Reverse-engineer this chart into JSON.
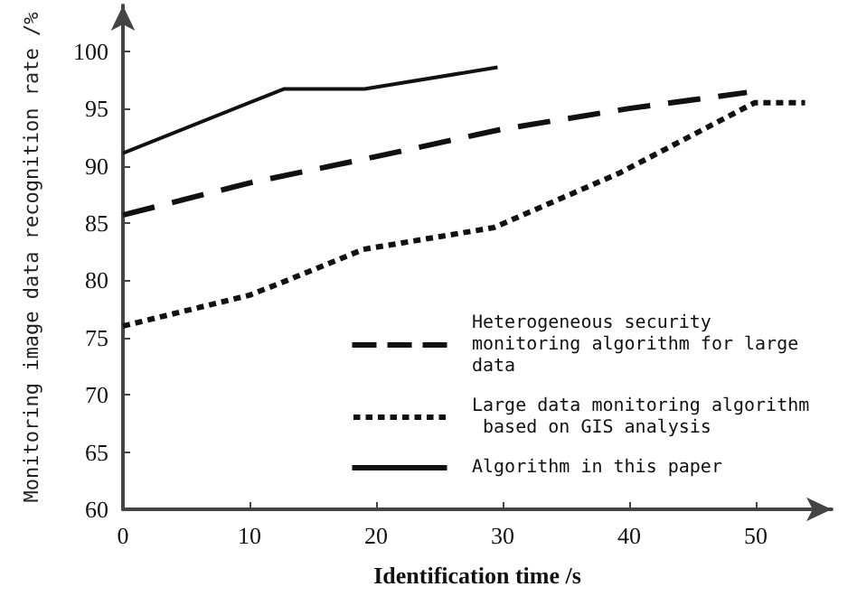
{
  "chart_data": {
    "type": "line",
    "xlabel": "Identification time /s",
    "ylabel": "Monitoring image data recognition rate /%",
    "xlim": [
      0,
      56
    ],
    "xticks": [
      0,
      10,
      20,
      30,
      40,
      50
    ],
    "ylim": [
      60,
      104
    ],
    "yticks": [
      60,
      65,
      70,
      75,
      80,
      85,
      90,
      95,
      100
    ],
    "grid": false,
    "legend": "bottom right",
    "marker": "none",
    "series": [
      {
        "name": "Heterogeneous security monitoring algorithm for large data",
        "color": "#111111",
        "line_style": "dashed",
        "x": [
          0,
          10,
          20,
          30,
          40,
          49.3
        ],
        "values": [
          85.7,
          88.5,
          90.8,
          93.2,
          95,
          96.4
        ]
      },
      {
        "name": "Large data monitoring algorithm based on GIS analysis",
        "color": "#111111",
        "line_style": "dotted",
        "x": [
          0,
          10,
          13,
          19,
          29.3,
          39.3,
          49.9,
          53.9
        ],
        "values": [
          76,
          78.7,
          80,
          82.7,
          84.6,
          89.4,
          95.5,
          95.5
        ]
      },
      {
        "name": "Algorithm in this paper",
        "color": "#111111",
        "line_style": "solid",
        "x": [
          0,
          12.7,
          19.1,
          29.6
        ],
        "values": [
          91.1,
          96.7,
          96.7,
          98.6
        ]
      }
    ]
  }
}
